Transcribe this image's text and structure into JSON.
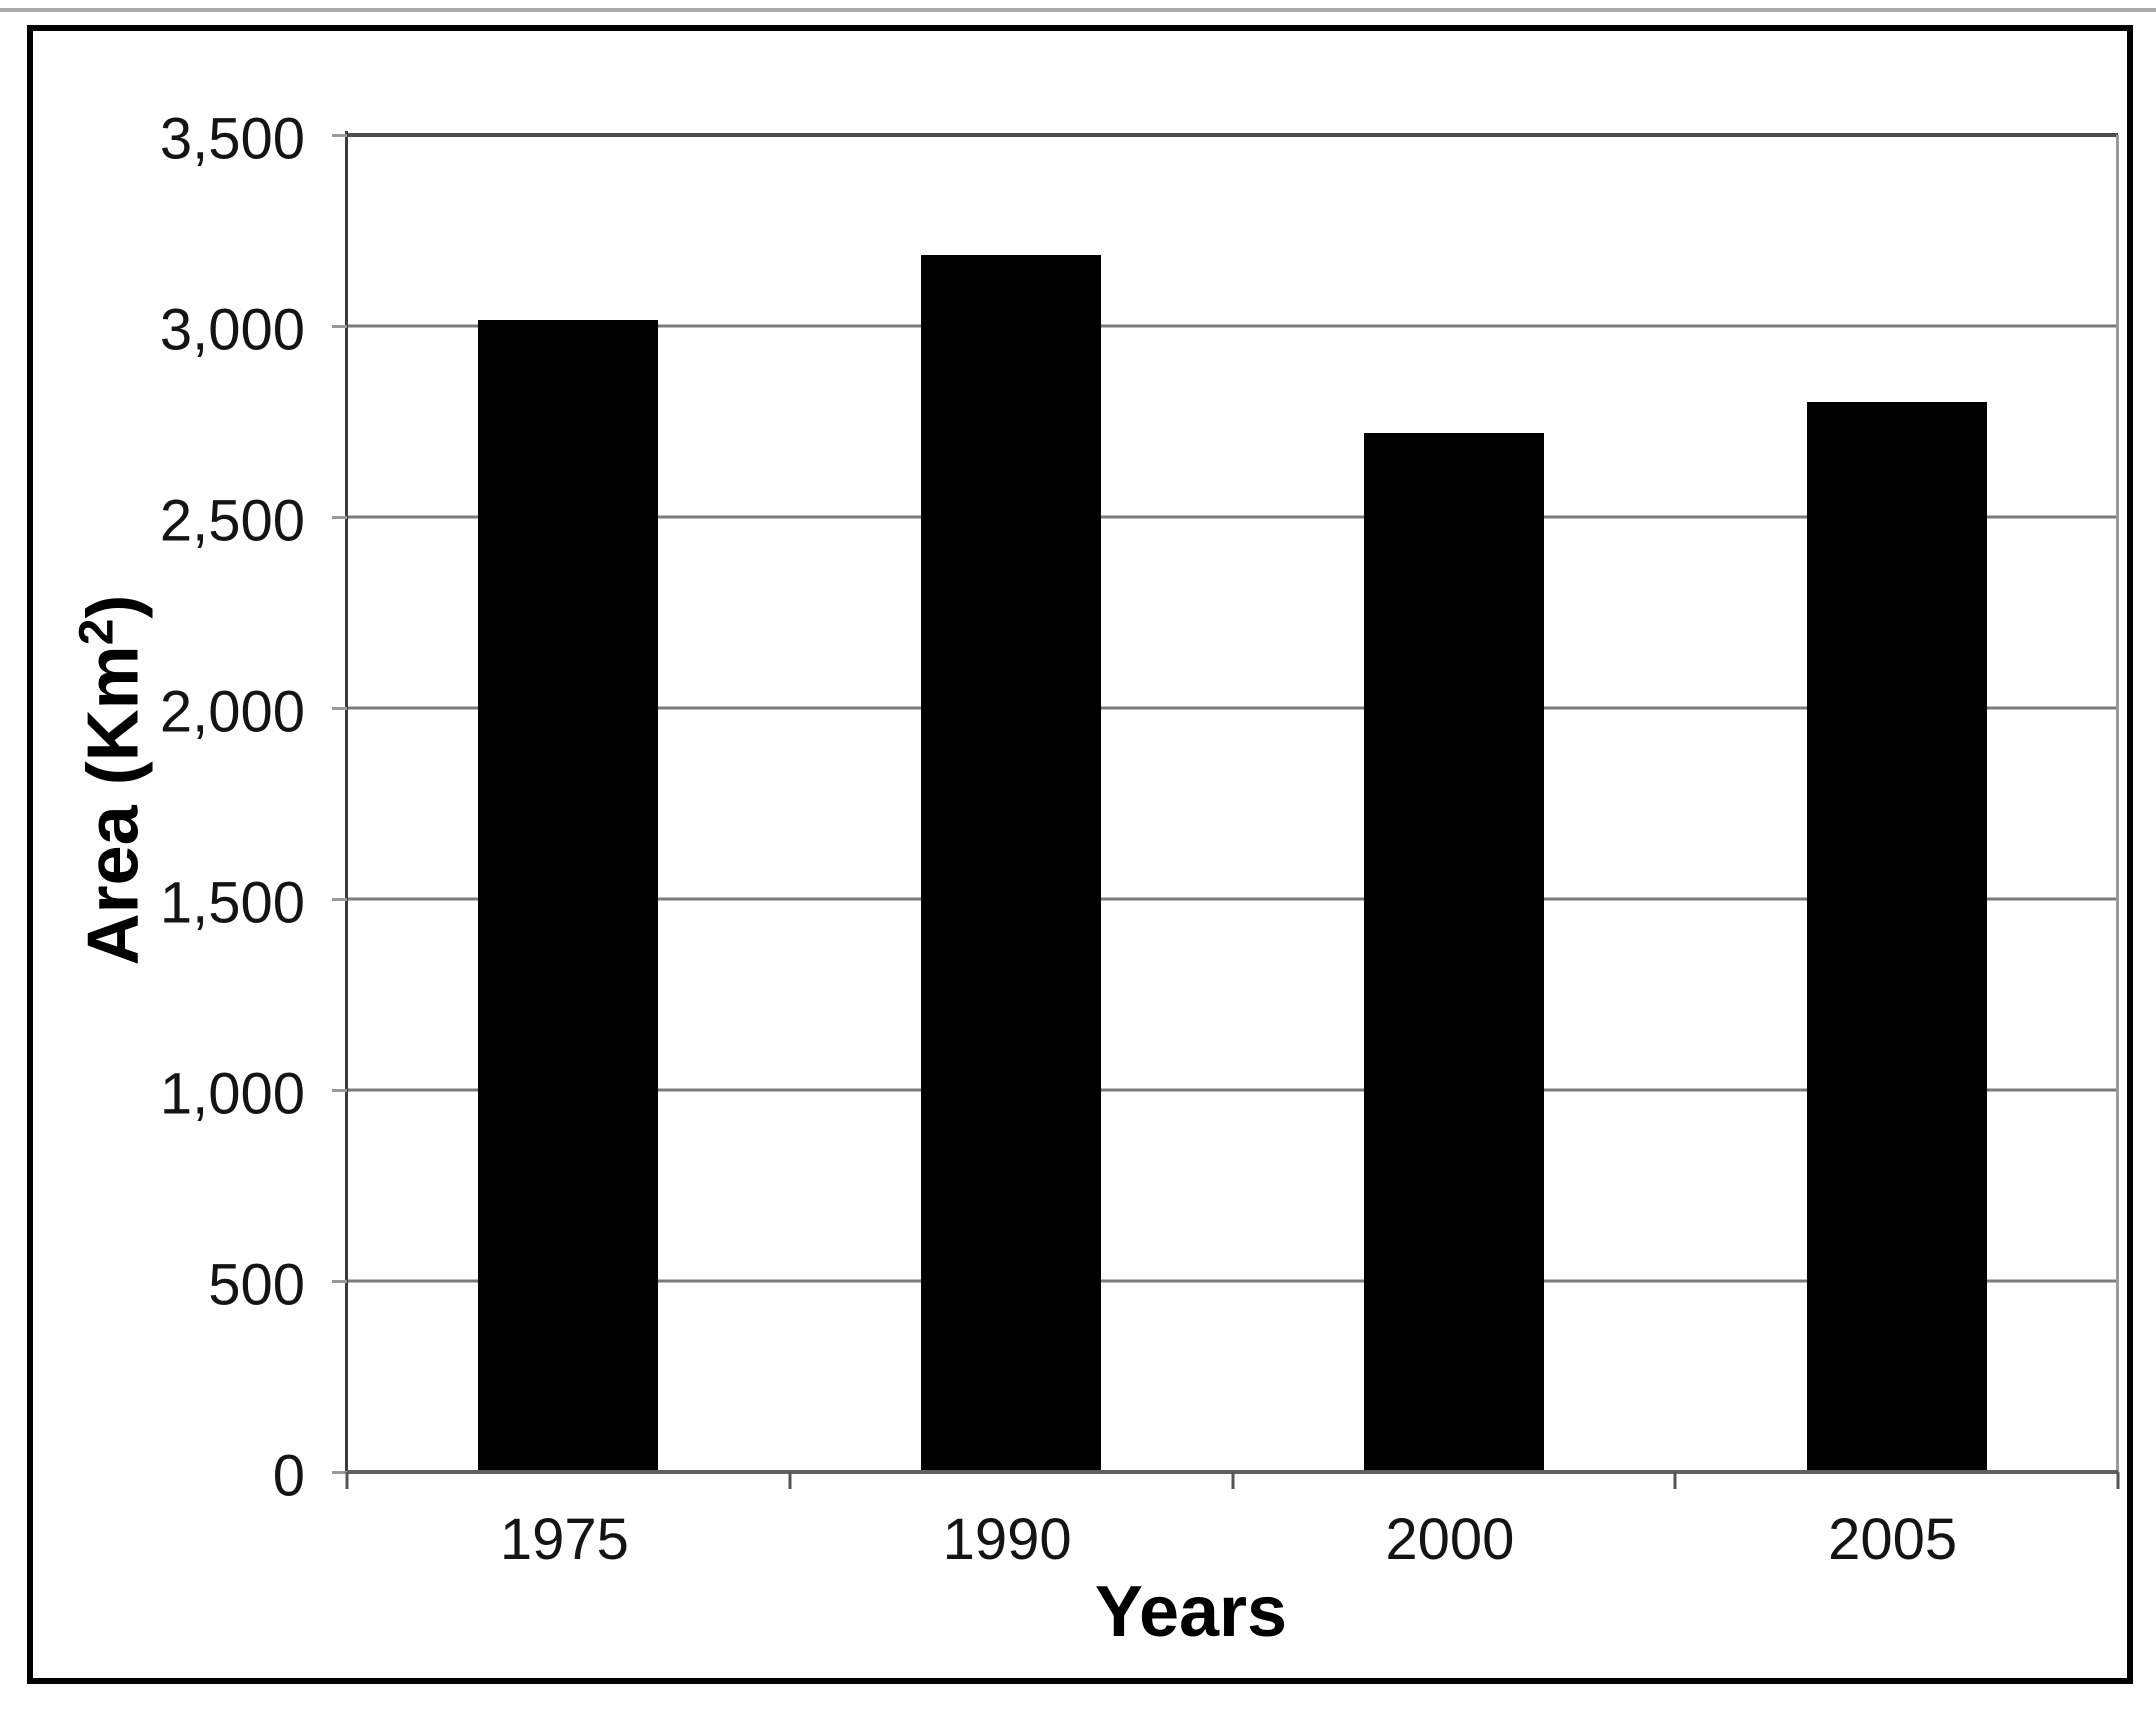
{
  "chart_data": {
    "type": "bar",
    "categories": [
      "1975",
      "1990",
      "2000",
      "2005"
    ],
    "values": [
      3015,
      3185,
      2720,
      2800
    ],
    "series_name": "Area",
    "xlabel": "Years",
    "ylabel_prefix": "Area (Km",
    "ylabel_sup": "2",
    "ylabel_suffix": ")",
    "ylim": [
      0,
      3500
    ],
    "ytick_step": 500,
    "ytick_labels": [
      "0",
      "500",
      "1,000",
      "1,500",
      "2,000",
      "2,500",
      "3,000",
      "3,500"
    ],
    "grid": "horizontal",
    "legend": "none",
    "bar_color": "#000000",
    "gridline_color": "#7a7a7a",
    "axis_color": "#3c3c3c",
    "background_color": "#ffffff"
  }
}
